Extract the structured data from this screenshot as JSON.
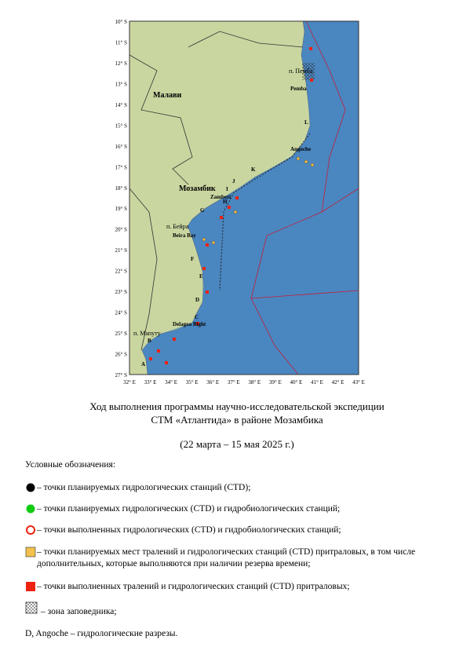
{
  "map": {
    "lat_labels": [
      "10° S",
      "11° S",
      "12° S",
      "13° S",
      "14° S",
      "15° S",
      "16° S",
      "17° S",
      "18° S",
      "19° S",
      "20° S",
      "21° S",
      "22° S",
      "23° S",
      "24° S",
      "25° S",
      "26° S",
      "27° S"
    ],
    "lon_labels": [
      "32° E",
      "33° E",
      "34° E",
      "35° E",
      "36° E",
      "37° E",
      "38° E",
      "39° E",
      "40° E",
      "41° E",
      "42° E",
      "43° E"
    ],
    "places": [
      "Малави",
      "Мозамбик",
      "п. Пемба",
      "Pemba",
      "Angoche",
      "Zambezi",
      "п. Бейра",
      "Beira Bay",
      "Delagoa Bight",
      "п. Мапуту"
    ],
    "sections": [
      "L",
      "K",
      "J",
      "I",
      "H",
      "G",
      "F",
      "E",
      "D",
      "C",
      "B",
      "A"
    ]
  },
  "caption": {
    "lines": [
      "Ход выполнения программы научно-исследовательской экспедиции",
      "СТМ «Атлантида» в районе Мозамбика"
    ],
    "dates": "(22 марта – 15 мая 2025 г.)"
  },
  "legend": {
    "heading": "Условные обозначения:",
    "items": [
      "– точки планируемых гидрологических станций (CTD);",
      "– точки планируемых гидрологических (CTD) и гидробиологических станций;",
      "– точки выполненных гидрологических (CTD) и гидробиологических станций;",
      "– точки планируемых мест тралений и гидрологических станций (CTD) притраловых, в том числе дополнительных, которые выполняются при наличии резерва времени;",
      "– точки выполненных тралений и гидрологических станций (CTD) притраловых;",
      "– зона заповедника;"
    ],
    "footer": "D, Angoche – гидрологические разрезы."
  }
}
